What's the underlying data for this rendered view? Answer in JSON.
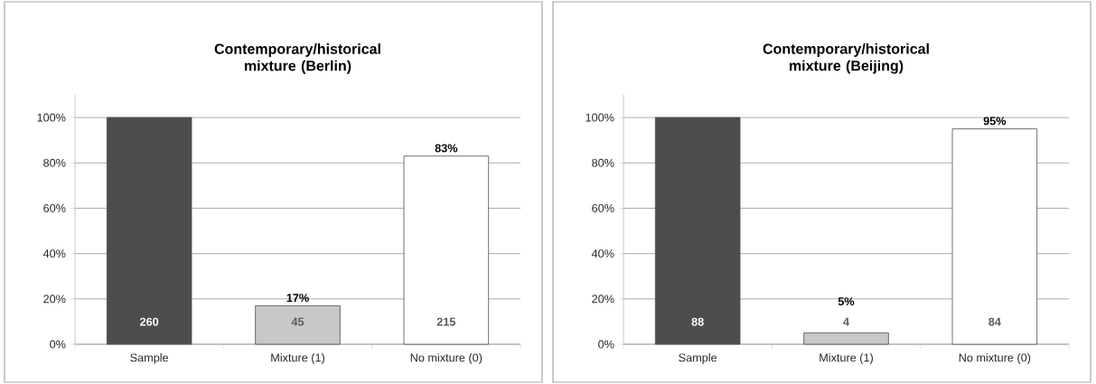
{
  "chart_data": [
    {
      "type": "bar",
      "title": "Contemporary/historical mixture (Berlin)",
      "categories": [
        "Sample",
        "Mixture (1)",
        "No mixture (0)"
      ],
      "values": [
        100,
        17,
        83
      ],
      "colors": [
        "#4d4d4d",
        "#c8c8c8",
        "#ffffff"
      ],
      "value_labels": [
        null,
        "17%",
        "83%"
      ],
      "annotations": [
        "260",
        "45",
        "215"
      ],
      "ylim": [
        0,
        110
      ],
      "yticks": [
        {
          "value": 0,
          "label": "0%"
        },
        {
          "value": 20,
          "label": "20%"
        },
        {
          "value": 40,
          "label": "40%"
        },
        {
          "value": 60,
          "label": "60%"
        },
        {
          "value": 80,
          "label": "80%"
        },
        {
          "value": 100,
          "label": "100%"
        }
      ],
      "grid": "y"
    },
    {
      "type": "bar",
      "title": "Contemporary/historical mixture (Beijing)",
      "categories": [
        "Sample",
        "Mixture (1)",
        "No mixture (0)"
      ],
      "values": [
        100,
        5,
        95
      ],
      "colors": [
        "#4d4d4d",
        "#c8c8c8",
        "#ffffff"
      ],
      "value_labels": [
        null,
        "5%",
        "95%"
      ],
      "annotations": [
        "88",
        "4",
        "84"
      ],
      "ylim": [
        0,
        110
      ],
      "yticks": [
        {
          "value": 0,
          "label": "0%"
        },
        {
          "value": 20,
          "label": "20%"
        },
        {
          "value": 40,
          "label": "40%"
        },
        {
          "value": 60,
          "label": "60%"
        },
        {
          "value": 80,
          "label": "80%"
        },
        {
          "value": 100,
          "label": "100%"
        }
      ],
      "grid": "y"
    }
  ]
}
